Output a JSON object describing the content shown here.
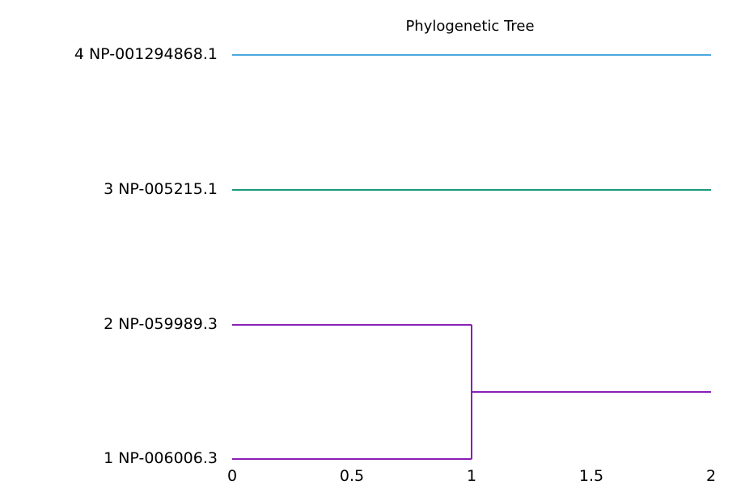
{
  "chart_data": {
    "type": "dendrogram",
    "title": "Phylogenetic Tree",
    "xlabel": "",
    "ylabel": "",
    "xlim": [
      0,
      2
    ],
    "x_ticks": [
      "0",
      "0.5",
      "1",
      "1.5",
      "2"
    ],
    "grid": false,
    "leaves": [
      {
        "label": "4 NP-001294868.1",
        "color": "#4aa8e0"
      },
      {
        "label": "3 NP-005215.1",
        "color": "#1a9a7a"
      },
      {
        "label": "2 NP-059989.3",
        "color": "#8a1fb8"
      },
      {
        "label": "1 NP-006006.3",
        "color": "#8a1fb8"
      }
    ],
    "clusters": [
      {
        "members": [
          "2 NP-059989.3",
          "1 NP-006006.3"
        ],
        "height": 1,
        "color": "#8a1fb8"
      }
    ]
  }
}
